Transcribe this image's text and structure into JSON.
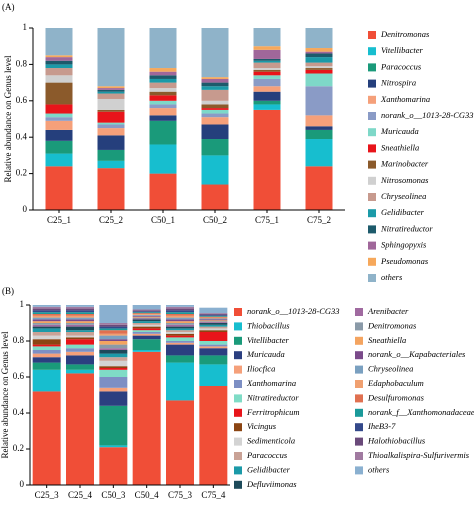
{
  "chart_data": [
    {
      "type": "bar",
      "stacked": true,
      "title": "(A)",
      "y_label": "Relative abundance on Genus level",
      "categories": [
        "C25_1",
        "C25_2",
        "C50_1",
        "C50_2",
        "C75_1",
        "C75_2"
      ],
      "ylim": [
        0,
        1
      ],
      "yticks": [
        0,
        0.2,
        0.4,
        0.6,
        0.8,
        1
      ],
      "series": [
        {
          "name": "Denitromonas",
          "color": "#f04e37",
          "values": [
            0.24,
            0.23,
            0.2,
            0.14,
            0.55,
            0.24
          ]
        },
        {
          "name": "Vitellibacter",
          "color": "#17becf",
          "values": [
            0.07,
            0.04,
            0.16,
            0.16,
            0.03,
            0.15
          ]
        },
        {
          "name": "Paracoccus",
          "color": "#1a9a7a",
          "values": [
            0.07,
            0.06,
            0.13,
            0.09,
            0.02,
            0.05
          ]
        },
        {
          "name": "Nitrospira",
          "color": "#253f7c",
          "values": [
            0.06,
            0.08,
            0.03,
            0.08,
            0.05,
            0.02
          ]
        },
        {
          "name": "Xanthomarina",
          "color": "#f5a07a",
          "values": [
            0.05,
            0.04,
            0.04,
            0.04,
            0.03,
            0.06
          ]
        },
        {
          "name": "norank_o__1013-28-CG33",
          "color": "#8a9bc6",
          "values": [
            0.02,
            0.02,
            0.02,
            0.02,
            0.04,
            0.16
          ]
        },
        {
          "name": "Muricauda",
          "color": "#7ed8c8",
          "values": [
            0.02,
            0.01,
            0.02,
            0.02,
            0.02,
            0.07
          ]
        },
        {
          "name": "Sneathiella",
          "color": "#e8141a",
          "values": [
            0.05,
            0.06,
            0.03,
            0.01,
            0.02,
            0.02
          ]
        },
        {
          "name": "Marinobacter",
          "color": "#8b5a2b",
          "values": [
            0.12,
            0.01,
            0.02,
            0.02,
            0.01,
            0.01
          ]
        },
        {
          "name": "Nitrosomonas",
          "color": "#d0d0d0",
          "values": [
            0.04,
            0.06,
            0.02,
            0.02,
            0.01,
            0.01
          ]
        },
        {
          "name": "Chryseolinea",
          "color": "#c79a8e",
          "values": [
            0.04,
            0.03,
            0.03,
            0.06,
            0.03,
            0.02
          ]
        },
        {
          "name": "Gelidibacter",
          "color": "#1b9aa8",
          "values": [
            0.02,
            0.01,
            0.02,
            0.02,
            0.01,
            0.03
          ]
        },
        {
          "name": "Nitratireductor",
          "color": "#1d5a6b",
          "values": [
            0.02,
            0.01,
            0.02,
            0.02,
            0.01,
            0.02
          ]
        },
        {
          "name": "Sphingopyxis",
          "color": "#a0679a",
          "values": [
            0.02,
            0.01,
            0.02,
            0.02,
            0.05,
            0.01
          ]
        },
        {
          "name": "Pseudomonas",
          "color": "#f6a85b",
          "values": [
            0.01,
            0.01,
            0.02,
            0.01,
            0.02,
            0.02
          ]
        },
        {
          "name": "others",
          "color": "#8fb3c9",
          "values": [
            0.15,
            0.32,
            0.22,
            0.27,
            0.1,
            0.11
          ]
        }
      ]
    },
    {
      "type": "bar",
      "stacked": true,
      "title": "(B)",
      "y_label": "Relative abundance on Genus level",
      "categories": [
        "C25_3",
        "C25_4",
        "C50_3",
        "C50_4",
        "C75_3",
        "C75_4"
      ],
      "ylim": [
        0,
        1
      ],
      "yticks": [
        0,
        0.2,
        0.4,
        0.6,
        0.8,
        1
      ],
      "series": [
        {
          "name": "norank_o__1013-28-CG33",
          "color": "#f04e37",
          "values": [
            0.52,
            0.62,
            0.21,
            0.74,
            0.47,
            0.55
          ]
        },
        {
          "name": "Thiobacillus",
          "color": "#17becf",
          "values": [
            0.12,
            0.02,
            0.01,
            0.01,
            0.21,
            0.12
          ]
        },
        {
          "name": "Vitellibacter",
          "color": "#1a9a7a",
          "values": [
            0.04,
            0.03,
            0.22,
            0.06,
            0.04,
            0.05
          ]
        },
        {
          "name": "Muricauda",
          "color": "#2b3f80",
          "values": [
            0.03,
            0.05,
            0.08,
            0.02,
            0.06,
            0.04
          ]
        },
        {
          "name": "Iliocfica",
          "color": "#f5a07a",
          "values": [
            0.02,
            0.02,
            0.02,
            0.01,
            0.01,
            0.01
          ]
        },
        {
          "name": "Xanthomarina",
          "color": "#7d8fc4",
          "values": [
            0.02,
            0.02,
            0.06,
            0.01,
            0.01,
            0.01
          ]
        },
        {
          "name": "Nitratireductor",
          "color": "#7fdcc6",
          "values": [
            0.02,
            0.02,
            0.04,
            0.01,
            0.02,
            0.02
          ]
        },
        {
          "name": "Ferritrophicum",
          "color": "#e8141a",
          "values": [
            0.01,
            0.03,
            0.01,
            0.01,
            0.01,
            0.05
          ]
        },
        {
          "name": "Vicingus",
          "color": "#8b4513",
          "values": [
            0.03,
            0.01,
            0.01,
            0.01,
            0.01,
            0.01
          ]
        },
        {
          "name": "Sedimenticola",
          "color": "#d3d3d3",
          "values": [
            0.02,
            0.01,
            0.03,
            0.01,
            0.01,
            0.01
          ]
        },
        {
          "name": "Paracoccus",
          "color": "#c9a296",
          "values": [
            0.02,
            0.02,
            0.02,
            0.01,
            0.01,
            0.01
          ]
        },
        {
          "name": "Gelidibacter",
          "color": "#1b9aa8",
          "values": [
            0.02,
            0.01,
            0.02,
            0.01,
            0.01,
            0.01
          ]
        },
        {
          "name": "Defluviimonas",
          "color": "#1d4a5a",
          "values": [
            0.01,
            0.02,
            0.02,
            0.01,
            0.01,
            0.01
          ]
        },
        {
          "name": "Arenibacter",
          "color": "#a06aa0",
          "values": [
            0.01,
            0.01,
            0.01,
            0.005,
            0.01,
            0.005
          ]
        },
        {
          "name": "Denitromonas",
          "color": "#8a9aa8",
          "values": [
            0.01,
            0.01,
            0.02,
            0.005,
            0.01,
            0.005
          ]
        },
        {
          "name": "Sneathiella",
          "color": "#f4a460",
          "values": [
            0.01,
            0.01,
            0.02,
            0.005,
            0.01,
            0.005
          ]
        },
        {
          "name": "norank_o__Kapabacteriales",
          "color": "#7a4a8a",
          "values": [
            0.01,
            0.01,
            0.01,
            0.005,
            0.01,
            0.005
          ]
        },
        {
          "name": "Chryseolinea",
          "color": "#7aa0c0",
          "values": [
            0.01,
            0.01,
            0.02,
            0.005,
            0.01,
            0.005
          ]
        },
        {
          "name": "Edaphobaculum",
          "color": "#f0a070",
          "values": [
            0.01,
            0.01,
            0.01,
            0.005,
            0.01,
            0.005
          ]
        },
        {
          "name": "Desulfuromonas",
          "color": "#e07050",
          "values": [
            0.01,
            0.01,
            0.02,
            0.005,
            0.01,
            0.005
          ]
        },
        {
          "name": "norank_f__Xanthomonadaceae",
          "color": "#1a9a9a",
          "values": [
            0.01,
            0.01,
            0.01,
            0.005,
            0.01,
            0.005
          ]
        },
        {
          "name": "IheB3-7",
          "color": "#34498a",
          "values": [
            0.01,
            0.01,
            0.01,
            0.005,
            0.01,
            0.005
          ]
        },
        {
          "name": "Halothiobacillus",
          "color": "#6a4a7a",
          "values": [
            0.01,
            0.01,
            0.01,
            0.005,
            0.01,
            0.005
          ]
        },
        {
          "name": "Thioalkalispira-Sulfurivermis",
          "color": "#a07aa0",
          "values": [
            0.01,
            0.01,
            0.01,
            0.005,
            0.01,
            0.005
          ]
        },
        {
          "name": "others",
          "color": "#8ab0d0",
          "values": [
            0.01,
            0.01,
            0.1,
            0.025,
            0.01,
            0.03
          ]
        }
      ]
    }
  ]
}
